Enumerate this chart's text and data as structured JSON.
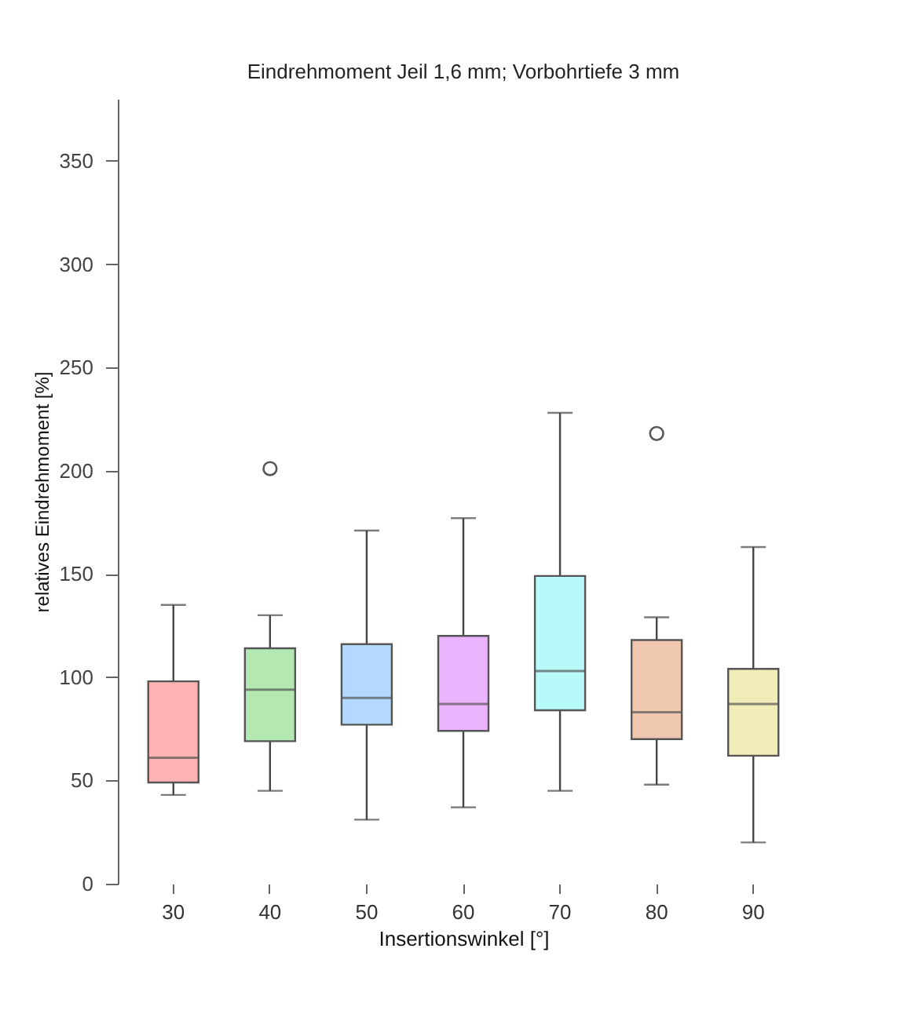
{
  "chart_data": {
    "type": "box",
    "title": "Eindrehmoment Jeil 1,6 mm; Vorbohrtiefe 3 mm",
    "xlabel": "Insertionswinkel [°]",
    "ylabel": "relatives Eindrehmoment [%]",
    "categories": [
      "30",
      "40",
      "50",
      "60",
      "70",
      "80",
      "90"
    ],
    "colors": [
      "#ffb3b3",
      "#b3e8b3",
      "#b3d9ff",
      "#ecb3ff",
      "#b8fafa",
      "#f0c8b0",
      "#f0edb8"
    ],
    "boxes": [
      {
        "low": 43,
        "q1": 49,
        "median": 61,
        "q3": 98,
        "high": 135
      },
      {
        "low": 45,
        "q1": 69,
        "median": 94,
        "q3": 114,
        "high": 130,
        "outliers": [
          201
        ]
      },
      {
        "low": 31,
        "q1": 77,
        "median": 90,
        "q3": 116,
        "high": 171
      },
      {
        "low": 37,
        "q1": 74,
        "median": 87,
        "q3": 120,
        "high": 177
      },
      {
        "low": 45,
        "q1": 84,
        "median": 103,
        "q3": 149,
        "high": 228
      },
      {
        "low": 48,
        "q1": 70,
        "median": 83,
        "q3": 118,
        "high": 129,
        "outliers": [
          218
        ]
      },
      {
        "low": 20,
        "q1": 62,
        "median": 87,
        "q3": 104,
        "high": 163
      }
    ],
    "ylim": [
      0,
      380
    ],
    "yticks": [
      0,
      50,
      100,
      150,
      200,
      250,
      300,
      350
    ]
  }
}
